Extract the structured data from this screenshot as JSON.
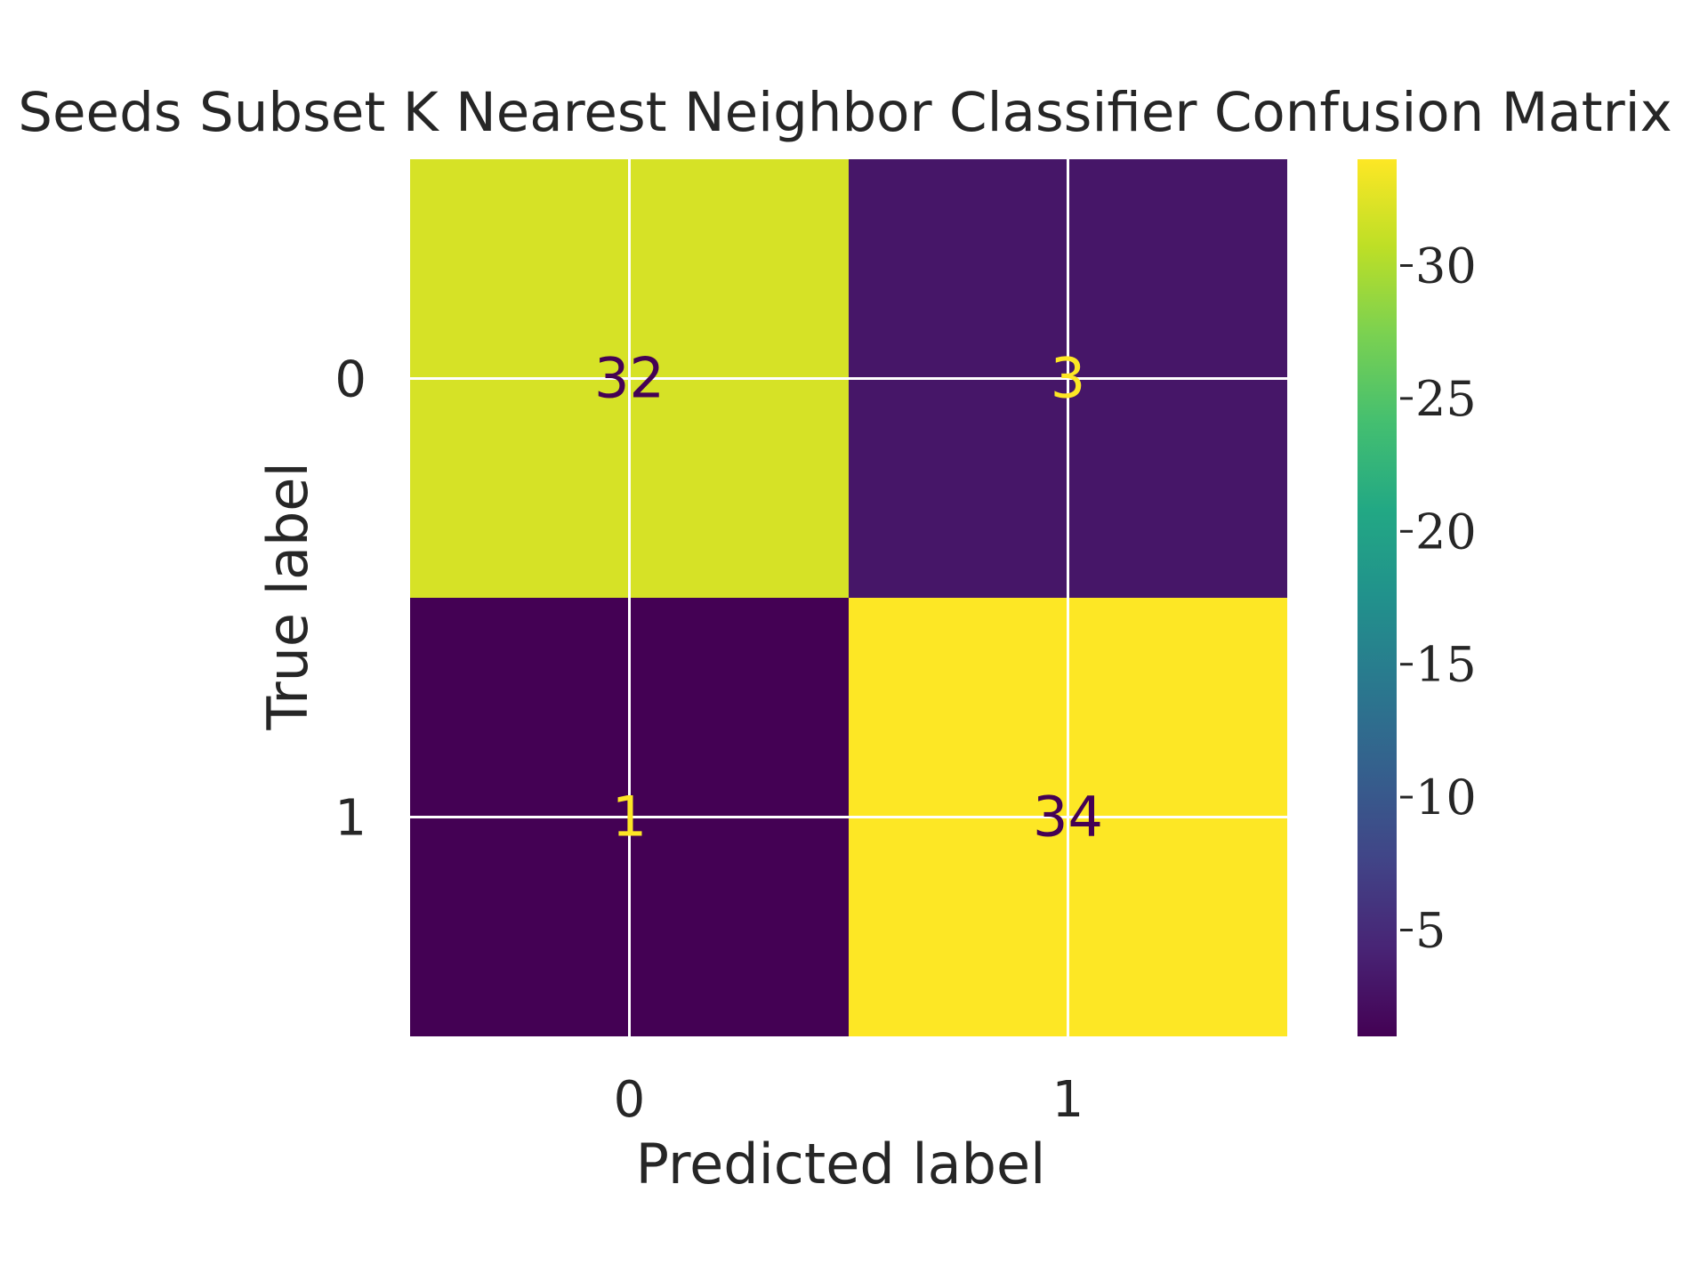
{
  "chart_data": {
    "type": "heatmap",
    "title": "Seeds Subset K Nearest Neighbor Classifier Confusion Matrix",
    "xlabel": "Predicted label",
    "ylabel": "True label",
    "x_ticks": [
      "0",
      "1"
    ],
    "y_ticks": [
      "0",
      "1"
    ],
    "matrix": [
      [
        32,
        3
      ],
      [
        1,
        34
      ]
    ],
    "colormap": "viridis",
    "colorbar": {
      "range": [
        1,
        34
      ],
      "ticks": [
        5,
        10,
        15,
        20,
        25,
        30
      ],
      "tick_labels": [
        "5",
        "10",
        "15",
        "20",
        "25",
        "30"
      ]
    },
    "grid": true,
    "colors": {
      "text_dark": "#440154",
      "text_light": "#fde725",
      "grid": "#ffffff"
    }
  }
}
